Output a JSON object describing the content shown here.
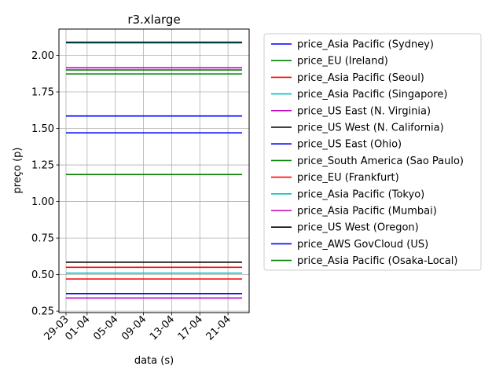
{
  "chart_data": {
    "type": "line",
    "title": "r3.xlarge",
    "xlabel": "data (s)",
    "ylabel": "preço (p)",
    "x_range": [
      "2023-03-28",
      "2023-04-24"
    ],
    "x_ticks": [
      {
        "date": "2023-03-29",
        "label": "29-03"
      },
      {
        "date": "2023-04-01",
        "label": "01-04"
      },
      {
        "date": "2023-04-05",
        "label": "05-04"
      },
      {
        "date": "2023-04-09",
        "label": "09-04"
      },
      {
        "date": "2023-04-13",
        "label": "13-04"
      },
      {
        "date": "2023-04-17",
        "label": "17-04"
      },
      {
        "date": "2023-04-21",
        "label": "21-04"
      }
    ],
    "ylim": [
      0.24,
      2.18
    ],
    "y_ticks": [
      0.25,
      0.5,
      0.75,
      1.0,
      1.25,
      1.5,
      1.75,
      2.0
    ],
    "y_tick_labels": [
      "0.25",
      "0.50",
      "0.75",
      "1.00",
      "1.25",
      "1.50",
      "1.75",
      "2.00"
    ],
    "grid": true,
    "legend_position": "outside-right",
    "x": [
      "2023-03-29",
      "2023-04-23"
    ],
    "series": [
      {
        "name": "price_Asia Pacific (Sydney)",
        "color": "#0000ff",
        "values": [
          1.585,
          1.585
        ]
      },
      {
        "name": "price_EU (Ireland)",
        "color": "#008000",
        "values": [
          1.873,
          1.873
        ]
      },
      {
        "name": "price_Asia Pacific (Seoul)",
        "color": "#ff0000",
        "values": [
          0.47,
          0.47
        ]
      },
      {
        "name": "price_Asia Pacific (Singapore)",
        "color": "#00bfbf",
        "values": [
          2.085,
          2.085
        ]
      },
      {
        "name": "price_US East (N. Virginia)",
        "color": "#bf00bf",
        "values": [
          1.915,
          1.915
        ]
      },
      {
        "name": "price_US West (N. California)",
        "color": "#000000",
        "values": [
          2.09,
          2.09
        ]
      },
      {
        "name": "price_US East (Ohio)",
        "color": "#0000ff",
        "values": [
          1.47,
          1.47
        ]
      },
      {
        "name": "price_South America (Sao Paulo)",
        "color": "#008000",
        "values": [
          1.185,
          1.185
        ]
      },
      {
        "name": "price_EU (Frankfurt)",
        "color": "#ff0000",
        "values": [
          0.55,
          0.55
        ]
      },
      {
        "name": "price_Asia Pacific (Tokyo)",
        "color": "#00bfbf",
        "values": [
          0.51,
          0.51
        ]
      },
      {
        "name": "price_Asia Pacific (Mumbai)",
        "color": "#bf00bf",
        "values": [
          0.34,
          0.34
        ]
      },
      {
        "name": "price_US West (Oregon)",
        "color": "#000000",
        "values": [
          0.585,
          0.585
        ]
      },
      {
        "name": "price_AWS GovCloud (US)",
        "color": "#0000ff",
        "values": [
          0.37,
          0.37
        ]
      },
      {
        "name": "price_Asia Pacific (Osaka-Local)",
        "color": "#008000",
        "values": [
          1.9,
          1.9
        ]
      }
    ]
  }
}
